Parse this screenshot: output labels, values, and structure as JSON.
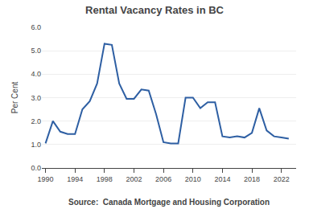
{
  "chart_data": {
    "type": "line",
    "title": "Rental Vacancy Rates in BC",
    "ylabel": "Per Cent",
    "annotations": [
      "Source:  Canada Mortgage and Housing Corporation"
    ],
    "x": [
      1990,
      1991,
      1992,
      1993,
      1994,
      1995,
      1996,
      1997,
      1998,
      1999,
      2000,
      2001,
      2002,
      2003,
      2004,
      2005,
      2006,
      2007,
      2008,
      2009,
      2010,
      2011,
      2012,
      2013,
      2014,
      2015,
      2016,
      2017,
      2018,
      2019,
      2020,
      2021,
      2022,
      2023
    ],
    "values": [
      1.05,
      2.0,
      1.55,
      1.45,
      1.45,
      2.5,
      2.85,
      3.6,
      5.3,
      5.25,
      3.6,
      2.95,
      2.95,
      3.35,
      3.3,
      2.3,
      1.1,
      1.05,
      1.05,
      3.0,
      3.0,
      2.55,
      2.8,
      2.8,
      1.35,
      1.3,
      1.35,
      1.3,
      1.5,
      2.55,
      1.6,
      1.35,
      1.3,
      1.25
    ],
    "color": "#2E5FA3",
    "xlim": [
      1989.5,
      2024.0
    ],
    "xticks": [
      1990,
      1994,
      1998,
      2002,
      2006,
      2010,
      2014,
      2018,
      2022
    ],
    "ylim": [
      0.0,
      6.0
    ],
    "yticks": [
      {
        "value": 0.0,
        "label": "0.0"
      },
      {
        "value": 1.0,
        "label": "1.0"
      },
      {
        "value": 2.0,
        "label": "2.0"
      },
      {
        "value": 3.0,
        "label": "3.0"
      },
      {
        "value": 4.0,
        "label": "4.0"
      },
      {
        "value": 5.0,
        "label": "5.0"
      },
      {
        "value": 6.0,
        "label": "6.0"
      }
    ],
    "grid": true
  }
}
